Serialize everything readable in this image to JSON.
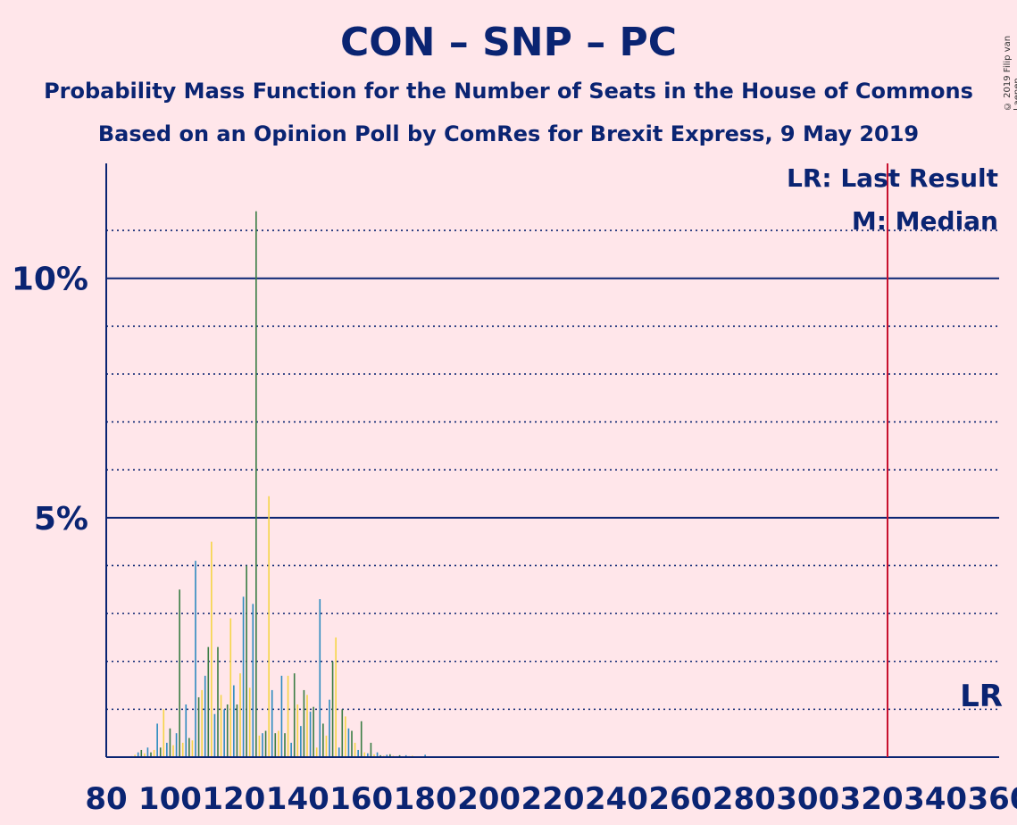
{
  "title": "CON – SNP – PC",
  "subtitle": "Probability Mass Function for the Number of Seats in the House of Commons",
  "subtitle2": "Based on an Opinion Poll by ComRes for Brexit Express, 9 May 2019",
  "copyright": "© 2019 Filip van Laenen",
  "legend": {
    "last_result": "LR: Last Result",
    "median": "M: Median"
  },
  "lr_label": "LR",
  "colors": {
    "background": "#FFE6EA",
    "axis": "#0A2472",
    "last_result_line": "#C8102E",
    "bar_blue": "#2E8BC0",
    "bar_green": "#3A7D44",
    "bar_yellow": "#F5D547"
  },
  "chart_data": {
    "type": "bar",
    "xlabel": "",
    "ylabel": "",
    "xlim": [
      80,
      360
    ],
    "ylim": [
      0,
      12.4
    ],
    "x_ticks": [
      80,
      100,
      120,
      140,
      160,
      180,
      200,
      220,
      240,
      260,
      280,
      300,
      320,
      340,
      360
    ],
    "x_tick_labels": [
      "80",
      "100",
      "120",
      "140",
      "160",
      "180",
      "200",
      "220",
      "240",
      "260",
      "280",
      "300",
      "320",
      "340",
      "360"
    ],
    "y_ticks": [
      5,
      10
    ],
    "y_tick_labels": [
      "5%",
      "10%"
    ],
    "y_minor_gridlines": [
      1,
      2,
      3,
      4,
      6,
      7,
      8,
      9,
      11
    ],
    "last_result": 325,
    "series": [
      {
        "name": "CON – SNP – PC",
        "values": [
          [
            88,
            0.02
          ],
          [
            89,
            0.05
          ],
          [
            90,
            0.1
          ],
          [
            91,
            0.15
          ],
          [
            92,
            0.08
          ],
          [
            93,
            0.2
          ],
          [
            94,
            0.1
          ],
          [
            95,
            0.15
          ],
          [
            96,
            0.7
          ],
          [
            97,
            0.2
          ],
          [
            98,
            1.0
          ],
          [
            99,
            0.3
          ],
          [
            100,
            0.6
          ],
          [
            101,
            0.25
          ],
          [
            102,
            0.5
          ],
          [
            103,
            3.5
          ],
          [
            104,
            0.3
          ],
          [
            105,
            1.1
          ],
          [
            106,
            0.4
          ],
          [
            107,
            0.35
          ],
          [
            108,
            4.1
          ],
          [
            109,
            1.25
          ],
          [
            110,
            1.4
          ],
          [
            111,
            1.7
          ],
          [
            112,
            2.3
          ],
          [
            113,
            4.5
          ],
          [
            114,
            0.9
          ],
          [
            115,
            2.3
          ],
          [
            116,
            1.3
          ],
          [
            117,
            1.0
          ],
          [
            118,
            1.1
          ],
          [
            119,
            2.9
          ],
          [
            120,
            1.5
          ],
          [
            121,
            1.1
          ],
          [
            122,
            1.75
          ],
          [
            123,
            3.35
          ],
          [
            124,
            4.0
          ],
          [
            125,
            1.45
          ],
          [
            126,
            3.2
          ],
          [
            127,
            11.4
          ],
          [
            128,
            0.45
          ],
          [
            129,
            0.5
          ],
          [
            130,
            0.55
          ],
          [
            131,
            5.45
          ],
          [
            132,
            1.4
          ],
          [
            133,
            0.5
          ],
          [
            134,
            0.55
          ],
          [
            135,
            1.7
          ],
          [
            136,
            0.5
          ],
          [
            137,
            1.7
          ],
          [
            138,
            0.3
          ],
          [
            139,
            1.75
          ],
          [
            140,
            1.1
          ],
          [
            141,
            0.65
          ],
          [
            142,
            1.4
          ],
          [
            143,
            1.3
          ],
          [
            144,
            0.95
          ],
          [
            145,
            1.05
          ],
          [
            146,
            0.2
          ],
          [
            147,
            3.3
          ],
          [
            148,
            0.7
          ],
          [
            149,
            0.45
          ],
          [
            150,
            1.2
          ],
          [
            151,
            2.0
          ],
          [
            152,
            2.5
          ],
          [
            153,
            0.2
          ],
          [
            154,
            1.0
          ],
          [
            155,
            0.85
          ],
          [
            156,
            0.6
          ],
          [
            157,
            0.55
          ],
          [
            158,
            0.3
          ],
          [
            159,
            0.15
          ],
          [
            160,
            0.75
          ],
          [
            161,
            0.1
          ],
          [
            162,
            0.08
          ],
          [
            163,
            0.3
          ],
          [
            164,
            0.06
          ],
          [
            165,
            0.1
          ],
          [
            166,
            0.04
          ],
          [
            167,
            0.03
          ],
          [
            168,
            0.05
          ],
          [
            169,
            0.06
          ],
          [
            170,
            0.03
          ],
          [
            171,
            0.02
          ],
          [
            172,
            0.04
          ],
          [
            173,
            0.02
          ],
          [
            174,
            0.04
          ],
          [
            175,
            0.02
          ],
          [
            176,
            0.03
          ],
          [
            180,
            0.05
          ]
        ]
      }
    ]
  }
}
